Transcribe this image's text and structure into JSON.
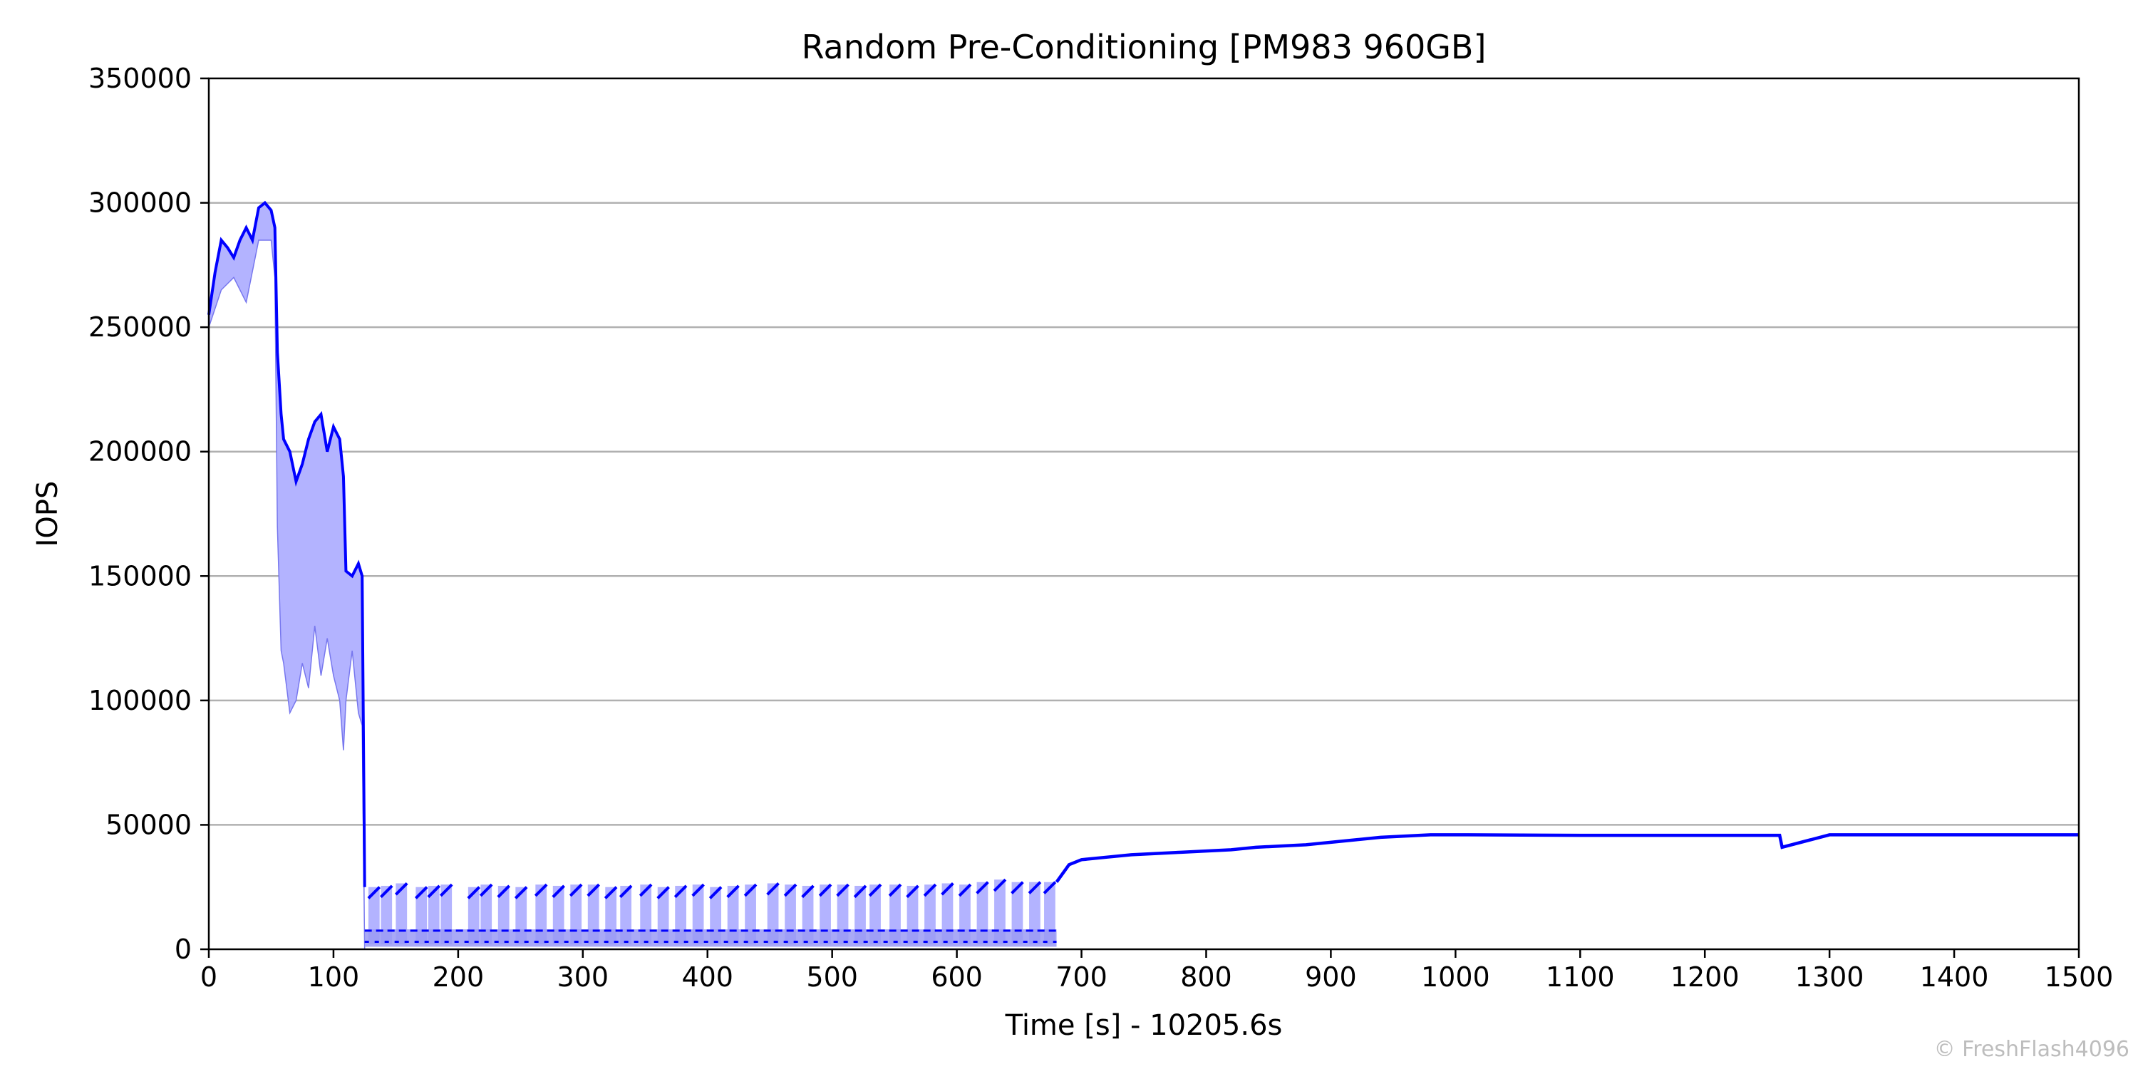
{
  "chart_data": {
    "type": "line",
    "title": "Random Pre-Conditioning [PM983 960GB]",
    "xlabel": "Time [s] - 10205.6s",
    "ylabel": "IOPS",
    "xlim": [
      0,
      1500
    ],
    "ylim": [
      0,
      350000
    ],
    "xticks": [
      0,
      100,
      200,
      300,
      400,
      500,
      600,
      700,
      800,
      900,
      1000,
      1100,
      1200,
      1300,
      1400,
      1500
    ],
    "yticks": [
      0,
      50000,
      100000,
      150000,
      200000,
      250000,
      300000,
      350000
    ],
    "grid": "horizontal",
    "legend": "none",
    "copyright": "© FreshFlash4096",
    "colors": {
      "line": "#0000ff",
      "band": "#b3b3ff",
      "grid": "#b0b0b0",
      "axis": "#000000"
    },
    "series": [
      {
        "role": "upper-envelope",
        "x": [
          0,
          5,
          10,
          15,
          20,
          25,
          30,
          35,
          40,
          45,
          50,
          53,
          55,
          58,
          60,
          65,
          70,
          75,
          80,
          85,
          90,
          95,
          100,
          105,
          108,
          110,
          115,
          120,
          123,
          125
        ],
        "y": [
          255000,
          272000,
          285000,
          282000,
          278000,
          285000,
          290000,
          285000,
          298000,
          300000,
          297000,
          290000,
          240000,
          215000,
          205000,
          200000,
          188000,
          195000,
          205000,
          212000,
          215000,
          200000,
          210000,
          205000,
          190000,
          152000,
          150000,
          155000,
          150000,
          25000
        ]
      },
      {
        "role": "lower-envelope",
        "x": [
          0,
          10,
          20,
          30,
          40,
          50,
          53,
          55,
          58,
          60,
          65,
          70,
          75,
          80,
          85,
          90,
          95,
          100,
          105,
          108,
          110,
          115,
          120,
          123,
          125
        ],
        "y": [
          250000,
          265000,
          270000,
          260000,
          285000,
          285000,
          270000,
          170000,
          120000,
          115000,
          95000,
          100000,
          115000,
          105000,
          130000,
          110000,
          125000,
          110000,
          100000,
          80000,
          100000,
          120000,
          95000,
          90000,
          0
        ]
      },
      {
        "role": "sawtooth-peaks",
        "x": [
          128,
          138,
          150,
          166,
          176,
          186,
          208,
          218,
          232,
          246,
          262,
          276,
          290,
          304,
          318,
          330,
          346,
          360,
          374,
          388,
          402,
          416,
          430,
          448,
          462,
          476,
          490,
          504,
          518,
          530,
          546,
          560,
          574,
          588,
          602,
          616,
          630,
          644,
          658,
          670
        ],
        "y": [
          25000,
          25500,
          26500,
          25000,
          25500,
          26000,
          25000,
          26000,
          25500,
          25000,
          26000,
          25500,
          26000,
          26000,
          25000,
          25500,
          26000,
          25000,
          25500,
          26000,
          25000,
          25500,
          26000,
          26500,
          26000,
          25500,
          26000,
          26000,
          25500,
          26000,
          26000,
          25500,
          26000,
          26500,
          26000,
          27000,
          28000,
          27000,
          27000,
          27000
        ]
      },
      {
        "role": "steady-state",
        "x": [
          680,
          690,
          700,
          720,
          740,
          760,
          780,
          800,
          820,
          840,
          860,
          880,
          900,
          920,
          940,
          960,
          980,
          1000,
          1010,
          1100,
          1200,
          1260,
          1262,
          1300,
          1400,
          1500
        ],
        "y": [
          27000,
          34000,
          36000,
          37000,
          38000,
          38500,
          39000,
          39500,
          40000,
          41000,
          41500,
          42000,
          43000,
          44000,
          45000,
          45500,
          46000,
          46000,
          46000,
          45800,
          45800,
          45800,
          41000,
          46000,
          46000,
          46000
        ]
      }
    ]
  }
}
